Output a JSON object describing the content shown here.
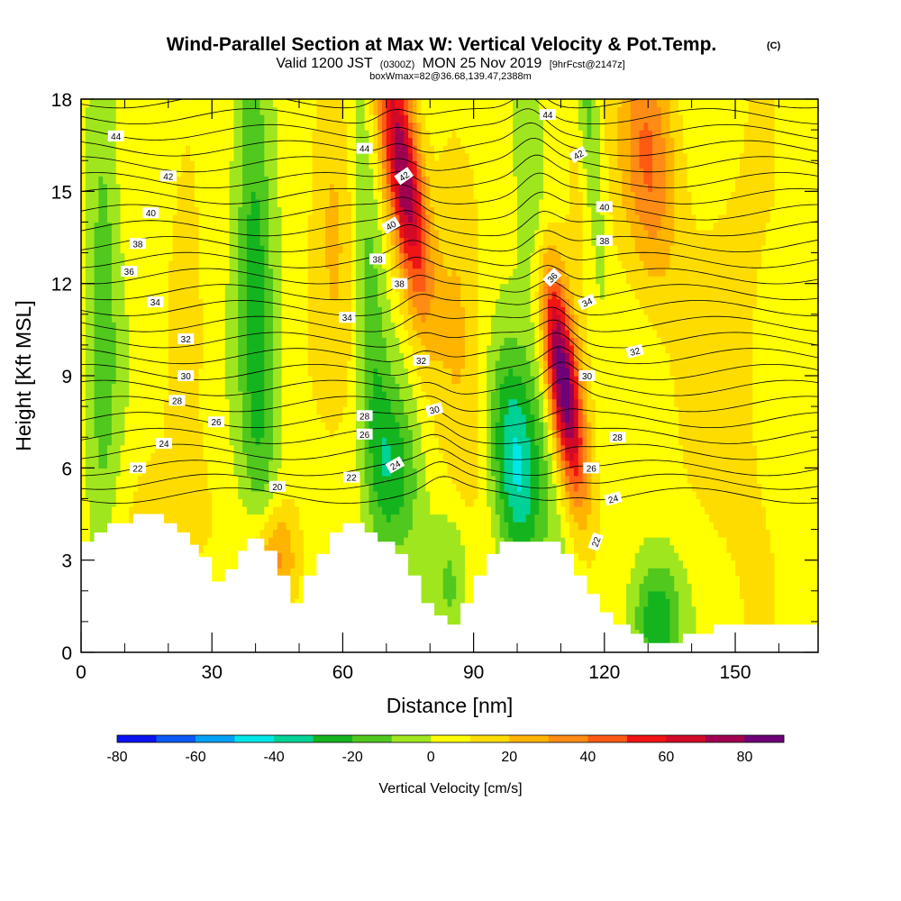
{
  "chart_data": {
    "type": "heatmap",
    "title": "Wind-Parallel Section at Max W: Vertical Velocity & Pot.Temp.",
    "title_mark": "(C)",
    "subtitle_parts": [
      "Valid 1200 JST",
      "(0300Z)",
      "MON 25 Nov 2019",
      "[9hrFcst@2147z]"
    ],
    "subtitle2": "boxWmax=82@36.68,139.47,2388m",
    "xlabel": "Distance [nm]",
    "ylabel": "Height [Kft MSL]",
    "xlim": [
      0,
      169
    ],
    "ylim": [
      0,
      18
    ],
    "x_ticks": [
      0,
      30,
      60,
      90,
      120,
      150
    ],
    "x_tick_labels": [
      "0",
      "30",
      "60",
      "90",
      "120",
      "150"
    ],
    "y_ticks": [
      0,
      3,
      6,
      9,
      12,
      15,
      18
    ],
    "y_tick_labels": [
      "0",
      "3",
      "6",
      "9",
      "12",
      "15",
      "18"
    ],
    "colorbar": {
      "label": "Vertical Velocity [cm/s]",
      "levels": [
        -80,
        -70,
        -60,
        -50,
        -40,
        -30,
        -20,
        -10,
        0,
        10,
        20,
        30,
        40,
        50,
        60,
        70,
        80,
        90
      ],
      "tick_values": [
        -80,
        -60,
        -40,
        -20,
        0,
        20,
        40,
        60,
        80
      ],
      "tick_labels": [
        "-80",
        "-60",
        "-40",
        "-20",
        "0",
        "20",
        "40",
        "60",
        "80"
      ],
      "colors": [
        "#0a14f0",
        "#0a5af5",
        "#00a0f5",
        "#00e6e6",
        "#00d296",
        "#14b41e",
        "#50c81e",
        "#a0e61e",
        "#ffff00",
        "#ffdc00",
        "#ffb400",
        "#ff8c14",
        "#ff5a14",
        "#f01414",
        "#d20a28",
        "#a00050",
        "#6e0078"
      ]
    },
    "velocity_features": [
      {
        "x": 74,
        "y": 15.5,
        "sx": 3.0,
        "sy": 3.0,
        "w": 75,
        "tilt": -0.9
      },
      {
        "x": 110,
        "y": 9.0,
        "sx": 2.8,
        "sy": 2.8,
        "w": 90,
        "tilt": -0.9
      },
      {
        "x": 116,
        "y": 15.5,
        "sx": 3.5,
        "sy": 2.5,
        "w": 20,
        "tilt": -0.5
      },
      {
        "x": 130,
        "y": 16.0,
        "sx": 4.5,
        "sy": 3.0,
        "w": 35,
        "tilt": -0.3
      },
      {
        "x": 58,
        "y": 14.0,
        "sx": 4.0,
        "sy": 4.5,
        "w": 18,
        "tilt": -0.3
      },
      {
        "x": 87,
        "y": 11.0,
        "sx": 4.0,
        "sy": 6.0,
        "w": 15,
        "tilt": -0.4
      },
      {
        "x": 44,
        "y": 3.0,
        "sx": 4.0,
        "sy": 1.3,
        "w": 35,
        "tilt": 0
      },
      {
        "x": 24,
        "y": 14.0,
        "sx": 3.0,
        "sy": 7.0,
        "w": 10,
        "tilt": 0
      },
      {
        "x": 5,
        "y": 12.0,
        "sx": 2.5,
        "sy": 8.0,
        "w": -18,
        "tilt": 0
      },
      {
        "x": 40,
        "y": 12.0,
        "sx": 3.0,
        "sy": 8.0,
        "w": -28,
        "tilt": -0.15
      },
      {
        "x": 66,
        "y": 12.0,
        "sx": 2.5,
        "sy": 7.0,
        "w": -18,
        "tilt": -0.3
      },
      {
        "x": 100,
        "y": 6.0,
        "sx": 4.0,
        "sy": 2.5,
        "w": -45,
        "tilt": -0.4
      },
      {
        "x": 105,
        "y": 12.0,
        "sx": 2.5,
        "sy": 5.0,
        "w": -25,
        "tilt": -0.6
      },
      {
        "x": 117,
        "y": 16.0,
        "sx": 2.0,
        "sy": 3.0,
        "w": -30,
        "tilt": -0.5
      },
      {
        "x": 132,
        "y": 1.0,
        "sx": 4.0,
        "sy": 1.5,
        "w": -35,
        "tilt": 0
      },
      {
        "x": 72,
        "y": 6.0,
        "sx": 4.0,
        "sy": 2.0,
        "w": -28,
        "tilt": -0.3
      },
      {
        "x": 85,
        "y": 2.5,
        "sx": 3.0,
        "sy": 1.5,
        "w": -15,
        "tilt": 0
      },
      {
        "x": 150,
        "y": 9.0,
        "sx": 10.0,
        "sy": 6.0,
        "w": 10,
        "tilt": 0
      },
      {
        "x": 20,
        "y": 4.5,
        "sx": 8.0,
        "sy": 1.5,
        "w": 12,
        "tilt": 0
      }
    ],
    "terrain": [
      [
        0,
        3.6
      ],
      [
        3,
        3.6
      ],
      [
        3,
        3.9
      ],
      [
        6,
        3.9
      ],
      [
        6,
        4.2
      ],
      [
        12,
        4.2
      ],
      [
        12,
        4.5
      ],
      [
        19,
        4.5
      ],
      [
        19,
        4.2
      ],
      [
        22,
        4.2
      ],
      [
        22,
        3.9
      ],
      [
        25,
        3.9
      ],
      [
        25,
        3.5
      ],
      [
        27,
        3.5
      ],
      [
        27,
        3.1
      ],
      [
        30,
        3.1
      ],
      [
        30,
        2.3
      ],
      [
        33,
        2.3
      ],
      [
        33,
        2.7
      ],
      [
        36,
        2.7
      ],
      [
        36,
        3.3
      ],
      [
        38,
        3.3
      ],
      [
        38,
        3.7
      ],
      [
        42,
        3.7
      ],
      [
        42,
        3.3
      ],
      [
        45,
        3.3
      ],
      [
        45,
        2.5
      ],
      [
        48,
        2.5
      ],
      [
        48,
        1.6
      ],
      [
        51,
        1.6
      ],
      [
        51,
        2.5
      ],
      [
        54,
        2.5
      ],
      [
        54,
        3.2
      ],
      [
        57,
        3.2
      ],
      [
        57,
        3.9
      ],
      [
        60,
        3.9
      ],
      [
        60,
        4.2
      ],
      [
        65,
        4.2
      ],
      [
        65,
        3.9
      ],
      [
        68,
        3.9
      ],
      [
        68,
        3.6
      ],
      [
        72,
        3.6
      ],
      [
        72,
        3.2
      ],
      [
        75,
        3.2
      ],
      [
        75,
        2.5
      ],
      [
        78,
        2.5
      ],
      [
        78,
        1.6
      ],
      [
        81,
        1.6
      ],
      [
        81,
        1.2
      ],
      [
        84,
        1.2
      ],
      [
        84,
        0.9
      ],
      [
        87,
        0.9
      ],
      [
        87,
        1.6
      ],
      [
        90,
        1.6
      ],
      [
        90,
        2.5
      ],
      [
        93,
        2.5
      ],
      [
        93,
        3.2
      ],
      [
        96,
        3.2
      ],
      [
        96,
        3.6
      ],
      [
        103,
        3.6
      ],
      [
        103,
        3.6
      ],
      [
        110,
        3.6
      ],
      [
        110,
        3.2
      ],
      [
        113,
        3.2
      ],
      [
        113,
        2.5
      ],
      [
        116,
        2.5
      ],
      [
        116,
        1.9
      ],
      [
        119,
        1.9
      ],
      [
        119,
        1.3
      ],
      [
        122,
        1.3
      ],
      [
        122,
        0.9
      ],
      [
        126,
        0.9
      ],
      [
        126,
        0.6
      ],
      [
        129,
        0.6
      ],
      [
        129,
        0.3
      ],
      [
        138,
        0.3
      ],
      [
        138,
        0.6
      ],
      [
        145,
        0.6
      ],
      [
        145,
        0.9
      ],
      [
        169,
        0.9
      ]
    ],
    "theta_contours": {
      "levels": [
        20,
        21,
        22,
        23,
        24,
        25,
        26,
        27,
        28,
        29,
        30,
        31,
        32,
        33,
        34,
        35,
        36,
        37,
        38,
        39,
        40,
        41,
        42,
        43,
        44,
        45
      ],
      "labels": [
        {
          "text": "44",
          "x": 8,
          "y": 16.8,
          "angle": 0
        },
        {
          "text": "42",
          "x": 20,
          "y": 15.5,
          "angle": 0
        },
        {
          "text": "40",
          "x": 16,
          "y": 14.3,
          "angle": 0
        },
        {
          "text": "38",
          "x": 13,
          "y": 13.3,
          "angle": 0
        },
        {
          "text": "36",
          "x": 11,
          "y": 12.4,
          "angle": 0
        },
        {
          "text": "34",
          "x": 17,
          "y": 11.4,
          "angle": 0
        },
        {
          "text": "32",
          "x": 24,
          "y": 10.2,
          "angle": 0
        },
        {
          "text": "30",
          "x": 24,
          "y": 9.0,
          "angle": 0
        },
        {
          "text": "28",
          "x": 22,
          "y": 8.2,
          "angle": 0
        },
        {
          "text": "26",
          "x": 31,
          "y": 7.5,
          "angle": 0
        },
        {
          "text": "24",
          "x": 19,
          "y": 6.8,
          "angle": 0
        },
        {
          "text": "22",
          "x": 13,
          "y": 6.0,
          "angle": 0
        },
        {
          "text": "20",
          "x": 45,
          "y": 5.4,
          "angle": 0
        },
        {
          "text": "44",
          "x": 65,
          "y": 16.4,
          "angle": 0
        },
        {
          "text": "42",
          "x": 74,
          "y": 15.5,
          "angle": -35
        },
        {
          "text": "40",
          "x": 71,
          "y": 13.9,
          "angle": -30
        },
        {
          "text": "38",
          "x": 68,
          "y": 12.8,
          "angle": 0
        },
        {
          "text": "38",
          "x": 73,
          "y": 12.0,
          "angle": 0
        },
        {
          "text": "34",
          "x": 61,
          "y": 10.9,
          "angle": 0
        },
        {
          "text": "32",
          "x": 78,
          "y": 9.5,
          "angle": 0
        },
        {
          "text": "30",
          "x": 81,
          "y": 7.9,
          "angle": -15
        },
        {
          "text": "28",
          "x": 65,
          "y": 7.7,
          "angle": 0
        },
        {
          "text": "26",
          "x": 65,
          "y": 7.1,
          "angle": 0
        },
        {
          "text": "24",
          "x": 72,
          "y": 6.1,
          "angle": -30
        },
        {
          "text": "22",
          "x": 62,
          "y": 5.7,
          "angle": 0
        },
        {
          "text": "44",
          "x": 107,
          "y": 17.5,
          "angle": 0
        },
        {
          "text": "42",
          "x": 114,
          "y": 16.2,
          "angle": -30
        },
        {
          "text": "40",
          "x": 120,
          "y": 14.5,
          "angle": 0
        },
        {
          "text": "38",
          "x": 120,
          "y": 13.4,
          "angle": 0
        },
        {
          "text": "36",
          "x": 108,
          "y": 12.2,
          "angle": -45
        },
        {
          "text": "34",
          "x": 116,
          "y": 11.4,
          "angle": -25
        },
        {
          "text": "32",
          "x": 127,
          "y": 9.8,
          "angle": -15
        },
        {
          "text": "30",
          "x": 116,
          "y": 9.0,
          "angle": 0
        },
        {
          "text": "28",
          "x": 123,
          "y": 7.0,
          "angle": 0
        },
        {
          "text": "26",
          "x": 117,
          "y": 6.0,
          "angle": 0
        },
        {
          "text": "24",
          "x": 122,
          "y": 5.0,
          "angle": -15
        },
        {
          "text": "22",
          "x": 118,
          "y": 3.6,
          "angle": -70
        }
      ]
    }
  }
}
